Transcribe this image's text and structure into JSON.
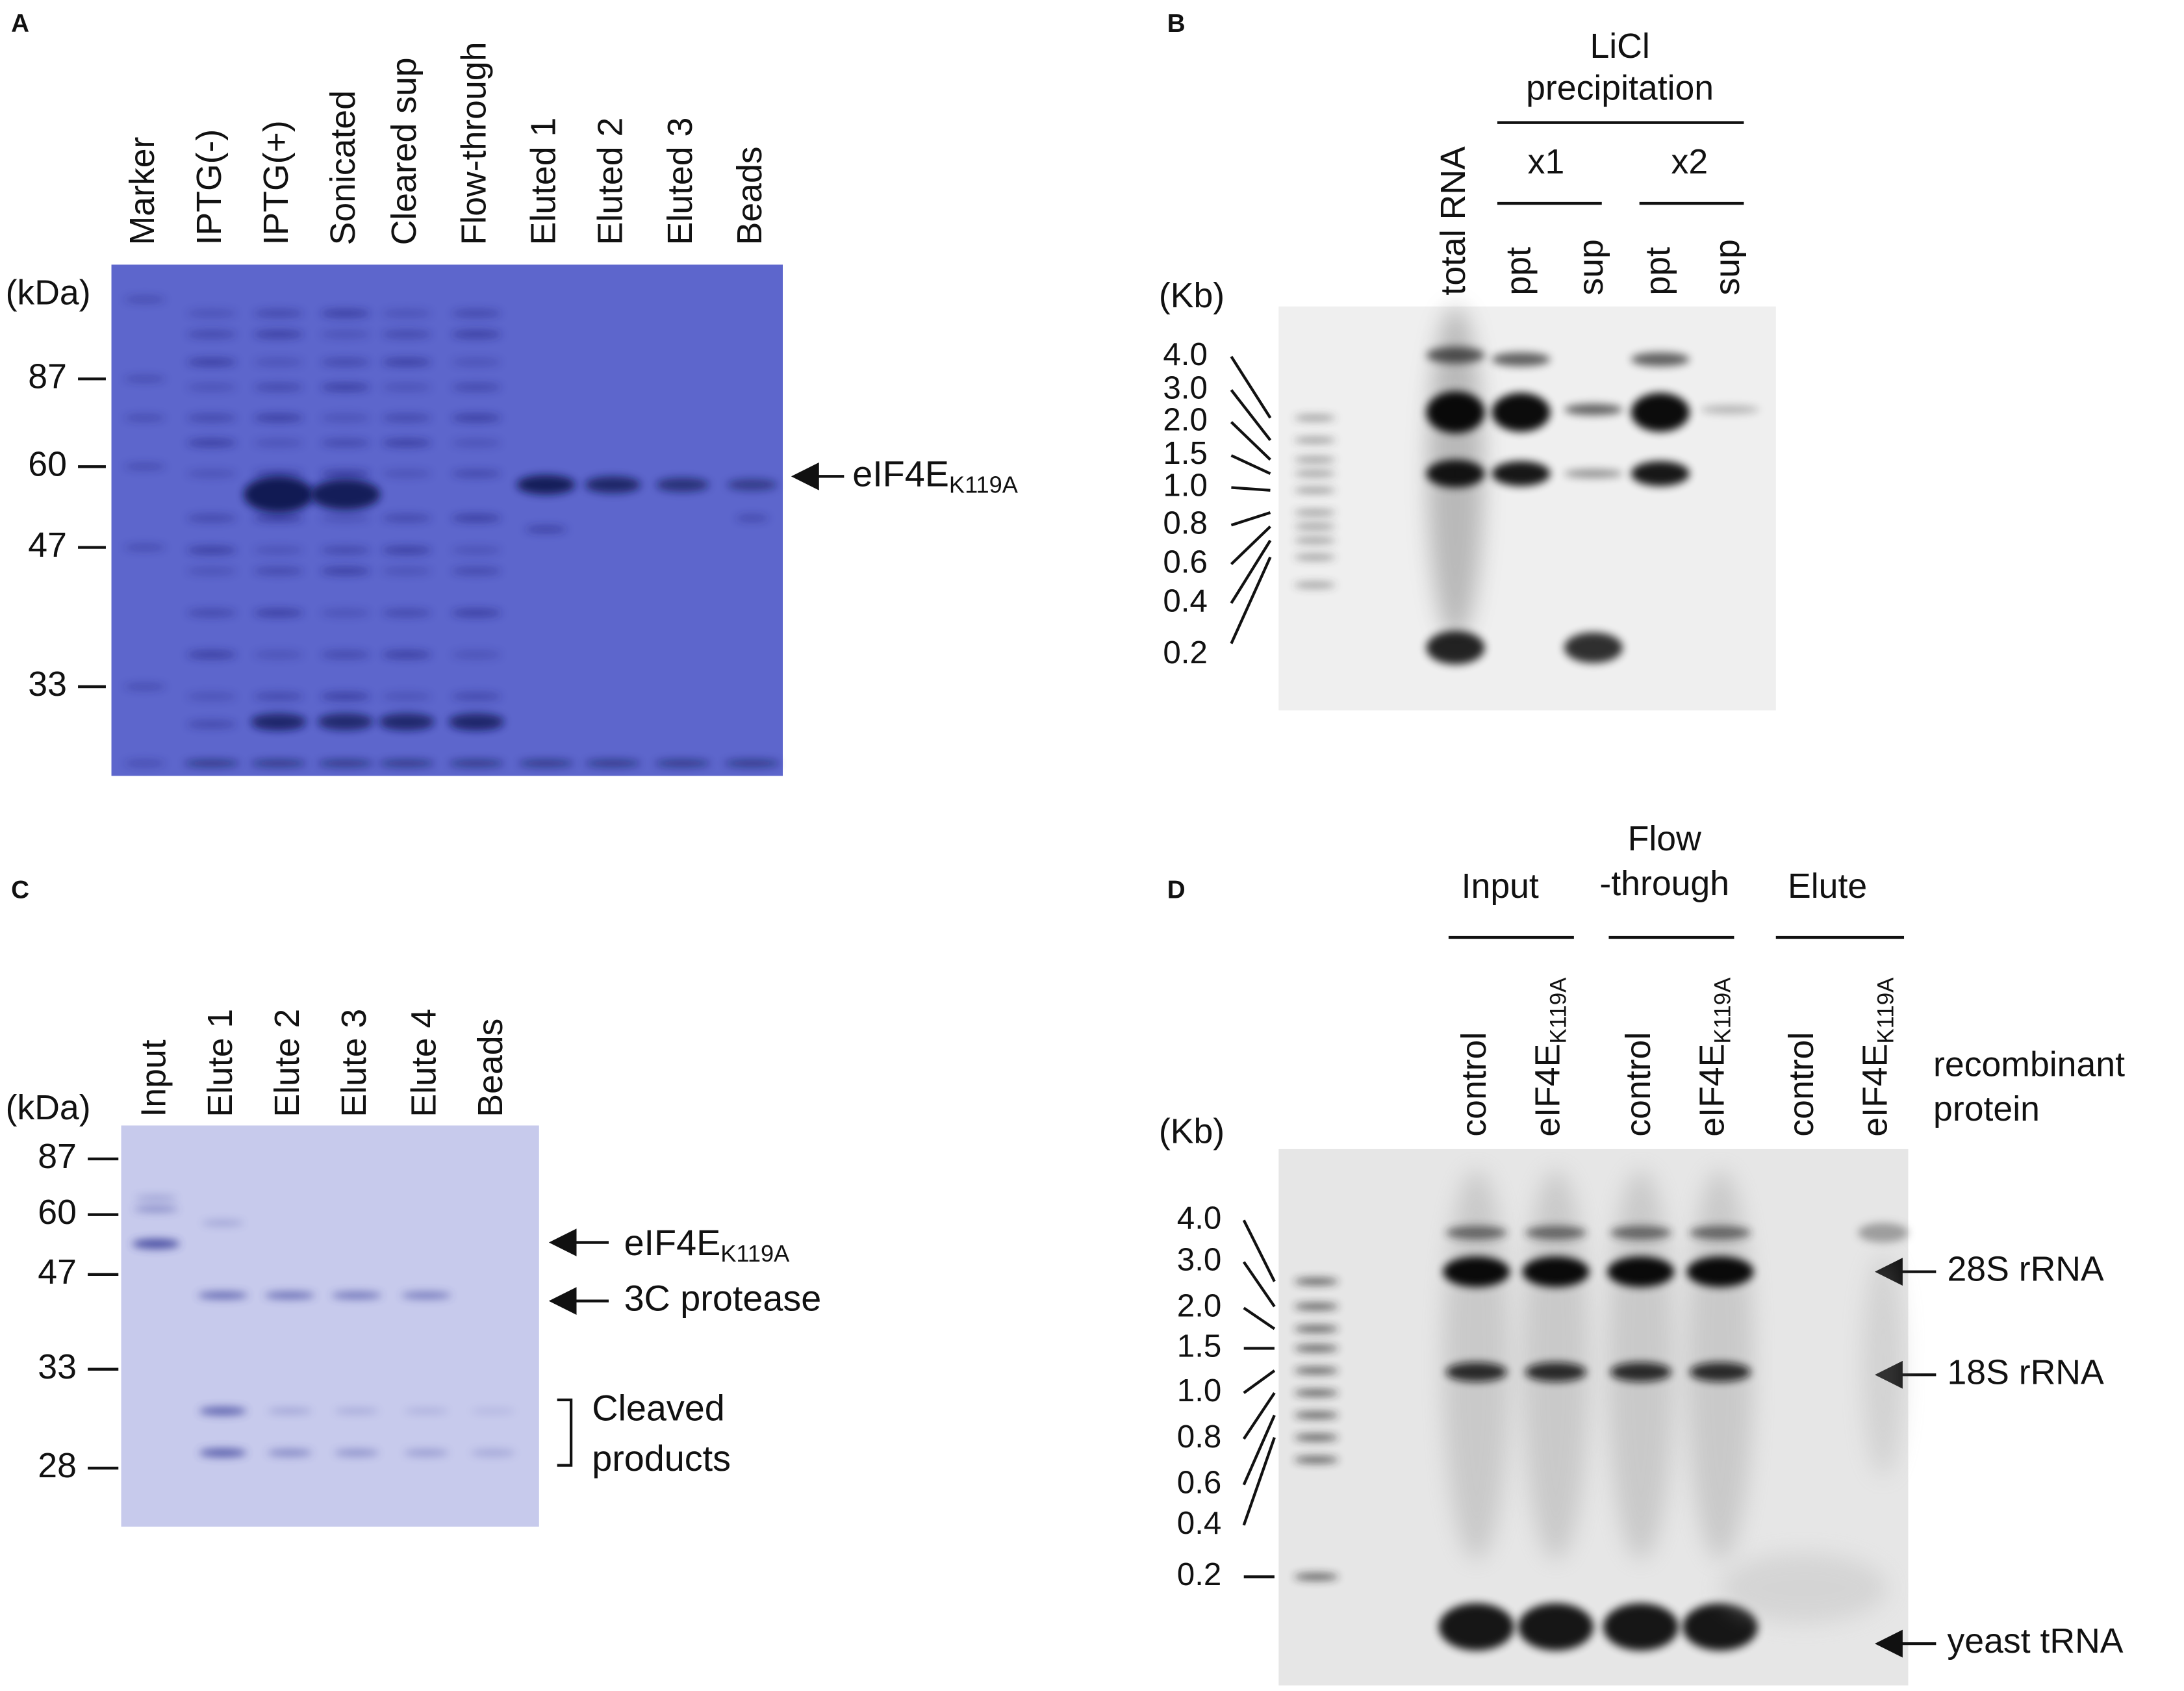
{
  "panel_a": {
    "letter": "A",
    "lanes": [
      "Marker",
      "IPTG(-)",
      "IPTG(+)",
      "Sonicated",
      "Cleared sup",
      "Flow-through",
      "Eluted 1",
      "Eluted 2",
      "Eluted 3",
      "Beads"
    ],
    "unit": "(kDa)",
    "markers": [
      "87",
      "60",
      "47",
      "33"
    ],
    "arrow_label": {
      "main": "eIF4E",
      "sub": "K119A"
    }
  },
  "panel_b": {
    "letter": "B",
    "group_title": [
      "LiCl",
      "precipitation"
    ],
    "groups": [
      "x1",
      "x2"
    ],
    "lanes": [
      "total RNA",
      "ppt",
      "sup",
      "ppt",
      "sup"
    ],
    "unit": "(Kb)",
    "markers": [
      "4.0",
      "3.0",
      "2.0",
      "1.5",
      "1.0",
      "0.8",
      "0.6",
      "0.4",
      "0.2"
    ]
  },
  "panel_c": {
    "letter": "C",
    "lanes": [
      "Input",
      "Elute 1",
      "Elute 2",
      "Elute 3",
      "Elute 4",
      "Beads"
    ],
    "unit": "(kDa)",
    "markers": [
      "87",
      "60",
      "47",
      "33",
      "28"
    ],
    "arrow_label": {
      "main": "eIF4E",
      "sub": "K119A"
    },
    "protease_label": "3C protease",
    "bracket_label": [
      "Cleaved",
      "products"
    ]
  },
  "panel_d": {
    "letter": "D",
    "groups": [
      [
        "Input"
      ],
      [
        "Flow",
        "-through"
      ],
      [
        "Elute"
      ]
    ],
    "control_label": "control",
    "protein_label": {
      "main": "eIF4E",
      "sub": "K119A"
    },
    "row_label": [
      "recombinant",
      "protein"
    ],
    "unit": "(Kb)",
    "markers": [
      "4.0",
      "3.0",
      "2.0",
      "1.5",
      "1.0",
      "0.8",
      "0.6",
      "0.4",
      "0.2"
    ],
    "annotations": [
      "28S rRNA",
      "18S rRNA",
      "yeast tRNA"
    ]
  }
}
